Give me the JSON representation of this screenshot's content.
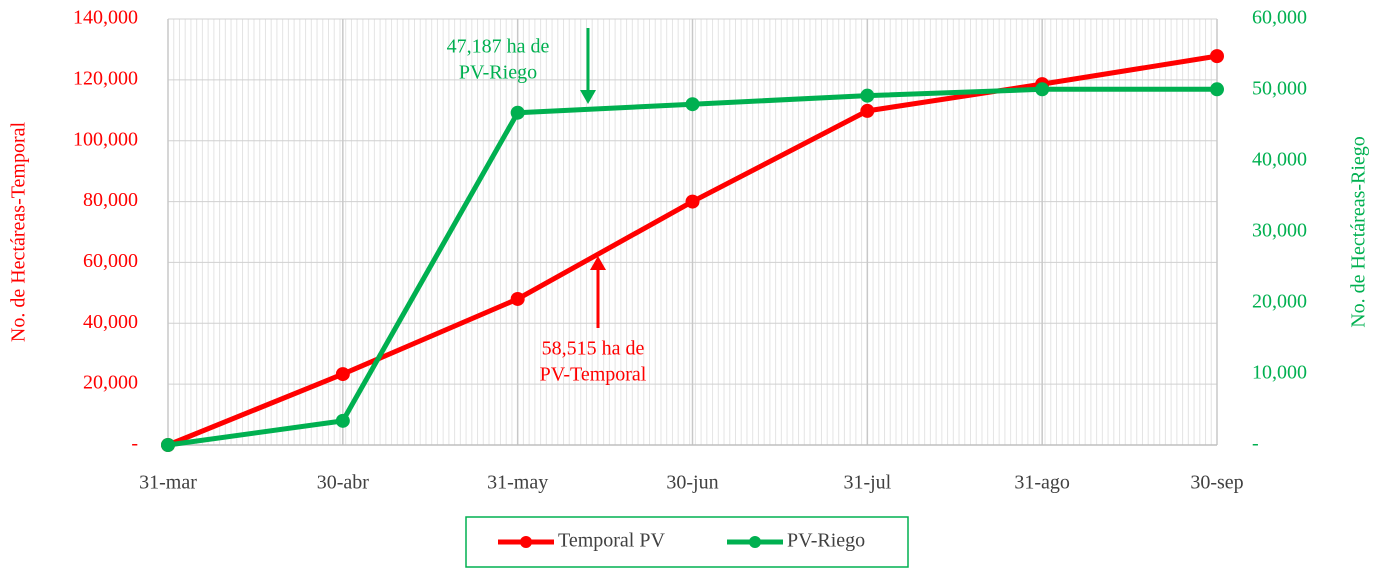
{
  "chart_data": {
    "type": "line",
    "categories": [
      "31-mar",
      "30-abr",
      "31-may",
      "30-jun",
      "31-jul",
      "31-ago",
      "30-sep"
    ],
    "series": [
      {
        "name": "Temporal PV",
        "color": "#ff0000",
        "values": [
          0,
          23300,
          48000,
          80000,
          109800,
          118600,
          127800
        ]
      },
      {
        "name": "PV-Riego",
        "color": "#00b050",
        "axis": "y2",
        "values": [
          0,
          3400,
          46800,
          48000,
          49200,
          50100,
          50100
        ]
      }
    ],
    "ylabel": "No. de Hectáreas-Temporal",
    "y2label": "No. de Hectáreas-Riego",
    "ylim": [
      0,
      140000
    ],
    "yticks": [
      {
        "value": 0,
        "label": "-"
      },
      {
        "value": 20000,
        "label": "20,000"
      },
      {
        "value": 40000,
        "label": "40,000"
      },
      {
        "value": 60000,
        "label": "60,000"
      },
      {
        "value": 80000,
        "label": "80,000"
      },
      {
        "value": 100000,
        "label": "100,000"
      },
      {
        "value": 120000,
        "label": "120,000"
      },
      {
        "value": 140000,
        "label": "140,000"
      }
    ],
    "y2lim": [
      0,
      60000
    ],
    "y2ticks": [
      {
        "value": 0,
        "label": "-"
      },
      {
        "value": 10000,
        "label": "10,000"
      },
      {
        "value": 20000,
        "label": "20,000"
      },
      {
        "value": 30000,
        "label": "30,000"
      },
      {
        "value": 40000,
        "label": "40,000"
      },
      {
        "value": 50000,
        "label": "50,000"
      },
      {
        "value": 60000,
        "label": "60,000"
      }
    ],
    "annotations": [
      {
        "lines": [
          "47,187 ha de",
          "PV-Riego"
        ],
        "color": "#00b050"
      },
      {
        "lines": [
          "58,515 ha de",
          "PV-Temporal"
        ],
        "color": "#ff0000"
      }
    ],
    "grid": true,
    "legend": "bottom"
  }
}
